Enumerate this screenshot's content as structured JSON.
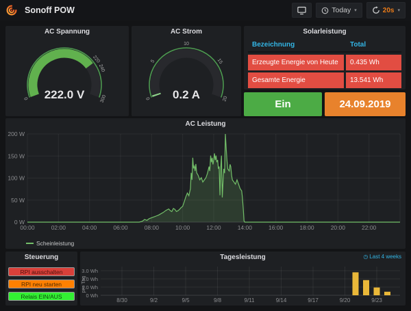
{
  "navbar": {
    "title": "Sonoff POW",
    "time_range_label": "Today",
    "refresh_interval": "20s",
    "accent_orange": "#eb7b18"
  },
  "panels": {
    "voltage_gauge": {
      "title": "AC Spannung",
      "display_value": "222.0 V",
      "value": 222,
      "min": 0,
      "max": 300,
      "thresholds": [
        220,
        240
      ],
      "ticks": [
        {
          "label": "0",
          "value": 0
        },
        {
          "label": "220",
          "value": 220
        },
        {
          "label": "240",
          "value": 240
        },
        {
          "label": "300",
          "value": 300
        }
      ],
      "fill_color": "#61b14e"
    },
    "current_gauge": {
      "title": "AC Strom",
      "display_value": "0.2 A",
      "value": 0.2,
      "min": 0,
      "max": 20,
      "ticks": [
        {
          "label": "0",
          "value": 0
        },
        {
          "label": "5",
          "value": 5
        },
        {
          "label": "10",
          "value": 10
        },
        {
          "label": "15",
          "value": 15
        },
        {
          "label": "20",
          "value": 20
        }
      ],
      "fill_color": "#8fd48b"
    },
    "solar_table": {
      "title": "Solarleistung",
      "columns": [
        "Bezeichnung",
        "Total"
      ],
      "rows": [
        [
          "Erzeugte Energie von Heute",
          "0.435 Wh"
        ],
        [
          "Gesamte Energie",
          "13.541 Wh"
        ]
      ],
      "row_bg": "#e24d42",
      "header_color": "#33b5e5"
    },
    "relay_stat": {
      "label": "Ein",
      "bg": "#4cab45"
    },
    "date_stat": {
      "label": "24.09.2019",
      "bg": "#e8822c"
    },
    "control": {
      "title": "Steuerung",
      "buttons": [
        {
          "label": "RPI ausschalten",
          "bg": "#d9403a",
          "fg": "#4d120c"
        },
        {
          "label": "RPI neu starten",
          "bg": "#ff8000",
          "fg": "#502a00"
        },
        {
          "label": "Relais EIN/AUS",
          "bg": "#33f033",
          "fg": "#0b4d0b"
        }
      ]
    }
  },
  "chart_data": [
    {
      "type": "area",
      "title": "AC Leistung",
      "xlabel": "",
      "ylabel": "",
      "yunit": "W",
      "ylim": [
        0,
        200
      ],
      "y_ticks": [
        "0 W",
        "50 W",
        "100 W",
        "150 W",
        "200 W"
      ],
      "x_range_hours": [
        0,
        24
      ],
      "x_ticks": [
        "00:00",
        "02:00",
        "04:00",
        "06:00",
        "08:00",
        "10:00",
        "12:00",
        "14:00",
        "16:00",
        "18:00",
        "20:00",
        "22:00"
      ],
      "legend_position": "bottom-left",
      "grid": true,
      "series": [
        {
          "name": "Scheinleistung",
          "color": "#73bf69",
          "points": [
            [
              0,
              0
            ],
            [
              7.2,
              0
            ],
            [
              7.4,
              2
            ],
            [
              7.55,
              6
            ],
            [
              7.7,
              4
            ],
            [
              7.85,
              8
            ],
            [
              8,
              10
            ],
            [
              8.15,
              12
            ],
            [
              8.3,
              14
            ],
            [
              8.45,
              16
            ],
            [
              8.6,
              19
            ],
            [
              8.75,
              22
            ],
            [
              8.9,
              26
            ],
            [
              9,
              28
            ],
            [
              9.1,
              30
            ],
            [
              9.2,
              26
            ],
            [
              9.3,
              24
            ],
            [
              9.4,
              31
            ],
            [
              9.5,
              29
            ],
            [
              9.6,
              24
            ],
            [
              9.7,
              26
            ],
            [
              9.8,
              29
            ],
            [
              9.9,
              33
            ],
            [
              10,
              36
            ],
            [
              10.1,
              46
            ],
            [
              10.2,
              57
            ],
            [
              10.3,
              66
            ],
            [
              10.4,
              60
            ],
            [
              10.5,
              76
            ],
            [
              10.55,
              112
            ],
            [
              10.6,
              96
            ],
            [
              10.65,
              146
            ],
            [
              10.7,
              122
            ],
            [
              10.75,
              127
            ],
            [
              10.8,
              116
            ],
            [
              10.85,
              132
            ],
            [
              10.9,
              112
            ],
            [
              11,
              106
            ],
            [
              11.1,
              96
            ],
            [
              11.2,
              101
            ],
            [
              11.3,
              91
            ],
            [
              11.4,
              96
            ],
            [
              11.5,
              101
            ],
            [
              11.6,
              111
            ],
            [
              11.7,
              126
            ],
            [
              11.75,
              116
            ],
            [
              11.8,
              151
            ],
            [
              11.85,
              136
            ],
            [
              11.9,
              146
            ],
            [
              11.95,
              131
            ],
            [
              12,
              141
            ],
            [
              12.05,
              156
            ],
            [
              12.1,
              141
            ],
            [
              12.15,
              151
            ],
            [
              12.2,
              136
            ],
            [
              12.25,
              141
            ],
            [
              12.3,
              121
            ],
            [
              12.35,
              126
            ],
            [
              12.4,
              61
            ],
            [
              12.45,
              121
            ],
            [
              12.5,
              151
            ],
            [
              12.55,
              56
            ],
            [
              12.6,
              91
            ],
            [
              12.65,
              121
            ],
            [
              12.7,
              111
            ],
            [
              12.75,
              200
            ],
            [
              12.8,
              171
            ],
            [
              12.85,
              141
            ],
            [
              12.9,
              121
            ],
            [
              13,
              116
            ],
            [
              13.05,
              131
            ],
            [
              13.1,
              126
            ],
            [
              13.15,
              106
            ],
            [
              13.2,
              96
            ],
            [
              13.3,
              91
            ],
            [
              13.4,
              86
            ],
            [
              13.5,
              96
            ],
            [
              13.6,
              86
            ],
            [
              13.7,
              76
            ],
            [
              13.8,
              71
            ],
            [
              13.85,
              56
            ],
            [
              13.9,
              31
            ],
            [
              13.95,
              3
            ],
            [
              14,
              0
            ],
            [
              24,
              0
            ]
          ]
        }
      ]
    },
    {
      "type": "bar",
      "title": "Tagesleistung",
      "time_note": "Last 4 weeks",
      "ylabel": "pro Tag",
      "yunit": "Wh",
      "ylim": [
        0,
        3
      ],
      "yticks": [
        "0 Wh",
        "1.0 Wh",
        "2.0 Wh",
        "3.0 Wh"
      ],
      "x_start": "8/28",
      "x_end": "9/25",
      "x_tick_labels": [
        "8/30",
        "9/2",
        "9/5",
        "9/8",
        "9/11",
        "9/14",
        "9/17",
        "9/20",
        "9/23"
      ],
      "bars": [
        {
          "date": "9/21",
          "value": 2.8
        },
        {
          "date": "9/22",
          "value": 1.85
        },
        {
          "date": "9/23",
          "value": 0.95
        },
        {
          "date": "9/24",
          "value": 0.435
        }
      ],
      "bar_color": "#eab839",
      "grid": true
    }
  ]
}
